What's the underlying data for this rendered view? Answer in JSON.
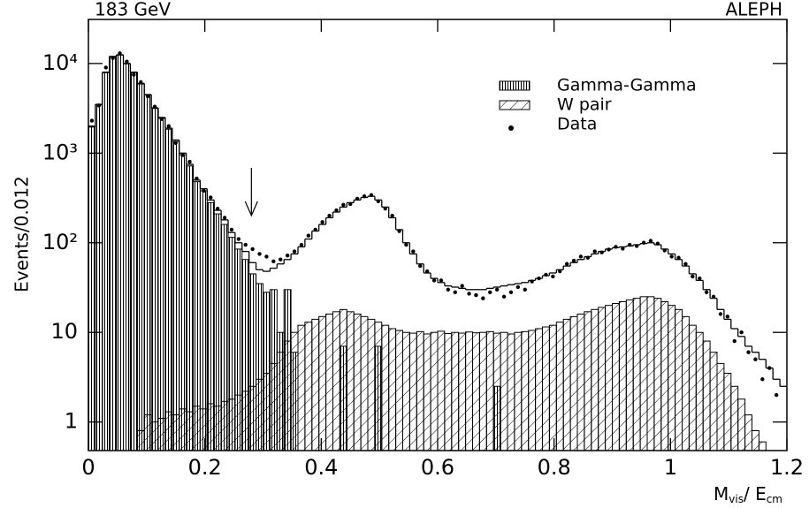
{
  "chart_data": {
    "type": "histogram",
    "title": "183 GeV",
    "experiment": "ALEPH",
    "y_label": "Events/0.012",
    "x_label": [
      "M",
      "vis",
      "/ E",
      "cm"
    ],
    "bins": [
      0,
      0.012,
      0.024,
      0.036,
      0.048,
      0.06,
      0.072,
      0.084,
      0.096,
      0.108,
      0.12,
      0.132,
      0.144,
      0.156,
      0.168,
      0.18,
      0.192,
      0.204,
      0.216,
      0.228,
      0.24,
      0.252,
      0.264,
      0.276,
      0.288,
      0.3,
      0.312,
      0.324,
      0.336,
      0.348,
      0.36,
      0.372,
      0.384,
      0.396,
      0.408,
      0.42,
      0.432,
      0.444,
      0.456,
      0.468,
      0.48,
      0.492,
      0.504,
      0.516,
      0.528,
      0.54,
      0.552,
      0.564,
      0.576,
      0.588,
      0.6,
      0.612,
      0.624,
      0.636,
      0.648,
      0.66,
      0.672,
      0.684,
      0.696,
      0.708,
      0.72,
      0.732,
      0.744,
      0.756,
      0.768,
      0.78,
      0.792,
      0.804,
      0.816,
      0.828,
      0.84,
      0.852,
      0.864,
      0.876,
      0.888,
      0.9,
      0.912,
      0.924,
      0.936,
      0.948,
      0.96,
      0.972,
      0.984,
      0.996,
      1.008,
      1.02,
      1.032,
      1.044,
      1.056,
      1.068,
      1.08,
      1.092,
      1.104,
      1.116,
      1.128,
      1.14,
      1.152,
      1.164,
      1.176,
      1.188,
      1.2
    ],
    "xlim": [
      0,
      1.2
    ],
    "xticks": [
      0,
      0.2,
      0.4,
      0.6,
      0.8,
      1,
      1.2
    ],
    "ylim": [
      0.48,
      31000
    ],
    "log_y": true,
    "yticks": [
      1,
      10,
      {
        "value": 100,
        "label": "10²"
      },
      {
        "value": 1000,
        "label": "10³"
      },
      {
        "value": 10000,
        "label": "10⁴"
      }
    ],
    "cut_arrow": 0.28,
    "series": [
      {
        "name": "Gamma-Gamma",
        "color": "#000000",
        "hatch": "vertical",
        "values": [
          1950,
          3450,
          7900,
          11900,
          12400,
          9900,
          7900,
          5900,
          4450,
          3150,
          2450,
          1850,
          1350,
          960,
          720,
          480,
          380,
          280,
          210,
          160,
          115,
          85,
          65,
          45,
          35,
          28,
          30,
          10,
          30,
          6,
          0,
          0,
          0,
          0,
          0,
          0,
          7,
          0,
          0,
          0,
          0,
          7,
          0,
          0,
          0,
          0,
          0,
          0,
          0,
          0,
          0,
          0,
          0,
          0,
          0,
          0,
          0,
          0,
          2.5,
          0,
          0,
          0,
          0,
          0,
          0,
          0,
          0,
          0,
          0,
          0,
          0,
          0,
          0,
          0,
          0,
          0,
          0,
          0,
          0,
          0,
          0,
          0,
          0,
          0,
          0,
          0,
          0,
          0,
          0,
          0,
          0,
          0,
          0,
          0,
          0,
          0,
          0,
          0,
          0,
          0
        ]
      },
      {
        "name": "W pair",
        "color": "#000000",
        "hatch": "diagonal",
        "values": [
          0,
          0,
          0,
          0,
          0,
          0,
          0,
          0.8,
          1.2,
          1,
          1.1,
          1.3,
          1.2,
          1.4,
          1.3,
          1.5,
          1.4,
          1.6,
          1.5,
          1.7,
          1.8,
          2,
          2.2,
          2.5,
          3,
          3.5,
          4.5,
          6,
          8,
          10,
          12,
          13,
          14,
          15,
          16,
          17,
          18,
          17,
          16,
          15,
          14,
          13,
          12,
          11,
          10.5,
          10,
          9.8,
          10.2,
          9.6,
          10,
          10.3,
          9.7,
          10,
          9.8,
          10.1,
          9.9,
          10,
          10.2,
          9.8,
          10,
          9.6,
          10,
          10.2,
          10.5,
          11,
          11.5,
          12,
          13,
          14,
          15,
          16,
          17,
          18,
          19,
          20,
          21,
          22,
          23,
          24,
          25,
          25,
          24,
          22,
          20,
          18,
          15,
          12,
          10,
          8,
          6,
          4.5,
          3.5,
          2.5,
          1.8,
          1.2,
          0.8,
          0.6,
          0,
          0,
          0
        ]
      },
      {
        "name": "Data",
        "color": "#000000",
        "marker": "dot",
        "values": [
          2300,
          3400,
          9000,
          11500,
          13000,
          10500,
          7500,
          6200,
          4300,
          3300,
          2400,
          2000,
          1300,
          950,
          800,
          520,
          380,
          320,
          240,
          190,
          140,
          110,
          95,
          85,
          75,
          70,
          62,
          65,
          72,
          80,
          95,
          120,
          140,
          170,
          200,
          230,
          265,
          270,
          310,
          330,
          340,
          290,
          240,
          200,
          135,
          95,
          80,
          55,
          48,
          38,
          38,
          30,
          28,
          33,
          27,
          26,
          24,
          28,
          30,
          25,
          28,
          32,
          30,
          37,
          40,
          44,
          42,
          48,
          58,
          63,
          70,
          68,
          80,
          78,
          84,
          90,
          86,
          95,
          92,
          100,
          105,
          98,
          82,
          70,
          68,
          58,
          42,
          40,
          28,
          25,
          16,
          15,
          8,
          10,
          6,
          5,
          3,
          4,
          2,
          null
        ]
      },
      {
        "color": "#000000",
        "values": [
          2000,
          3500,
          8000,
          12000,
          12500,
          10000,
          8000,
          6000,
          4500,
          3200,
          2500,
          1900,
          1400,
          1000,
          750,
          500,
          400,
          300,
          230,
          180,
          130,
          100,
          80,
          60,
          50,
          48,
          52,
          58,
          65,
          75,
          90,
          110,
          135,
          160,
          190,
          220,
          250,
          280,
          300,
          320,
          330,
          300,
          250,
          190,
          140,
          100,
          75,
          58,
          46,
          40,
          36,
          33,
          32,
          31,
          30,
          30,
          30,
          31,
          32,
          33,
          34,
          35,
          36,
          38,
          40,
          43,
          46,
          50,
          55,
          60,
          65,
          70,
          75,
          80,
          85,
          88,
          90,
          92,
          95,
          98,
          100,
          95,
          85,
          75,
          65,
          55,
          45,
          38,
          30,
          24,
          18,
          14,
          11,
          9,
          7,
          6,
          5,
          4,
          3,
          2.5
        ]
      }
    ]
  }
}
